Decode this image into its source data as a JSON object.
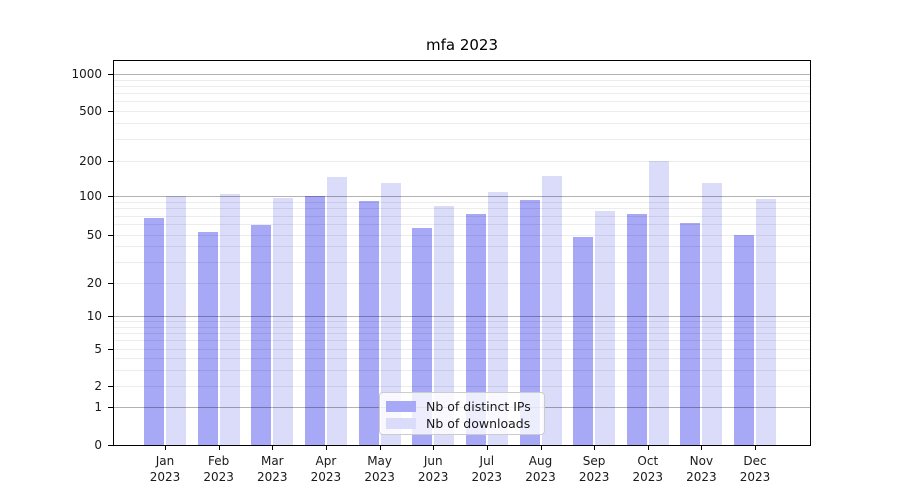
{
  "chart_data": {
    "type": "bar",
    "title": "mfa 2023",
    "categories": [
      "Jan 2023",
      "Feb 2023",
      "Mar 2023",
      "Apr 2023",
      "May 2023",
      "Jun 2023",
      "Jul 2023",
      "Aug 2023",
      "Sep 2023",
      "Oct 2023",
      "Nov 2023",
      "Dec 2023"
    ],
    "series": [
      {
        "name": "Nb of distinct IPs",
        "color": "#a7a8f6",
        "values": [
          67,
          52,
          59,
          101,
          92,
          56,
          73,
          93,
          48,
          73,
          62,
          50
        ]
      },
      {
        "name": "Nb of downloads",
        "color": "#dbdcf9",
        "values": [
          100,
          105,
          96,
          146,
          130,
          84,
          108,
          149,
          76,
          200,
          130,
          95
        ]
      }
    ],
    "yscale": "symlog",
    "yticks": [
      0,
      1,
      2,
      5,
      10,
      20,
      50,
      100,
      200,
      500,
      1000
    ],
    "ylim": [
      0,
      1200
    ],
    "grid": "on",
    "legend_position": "lower center"
  }
}
